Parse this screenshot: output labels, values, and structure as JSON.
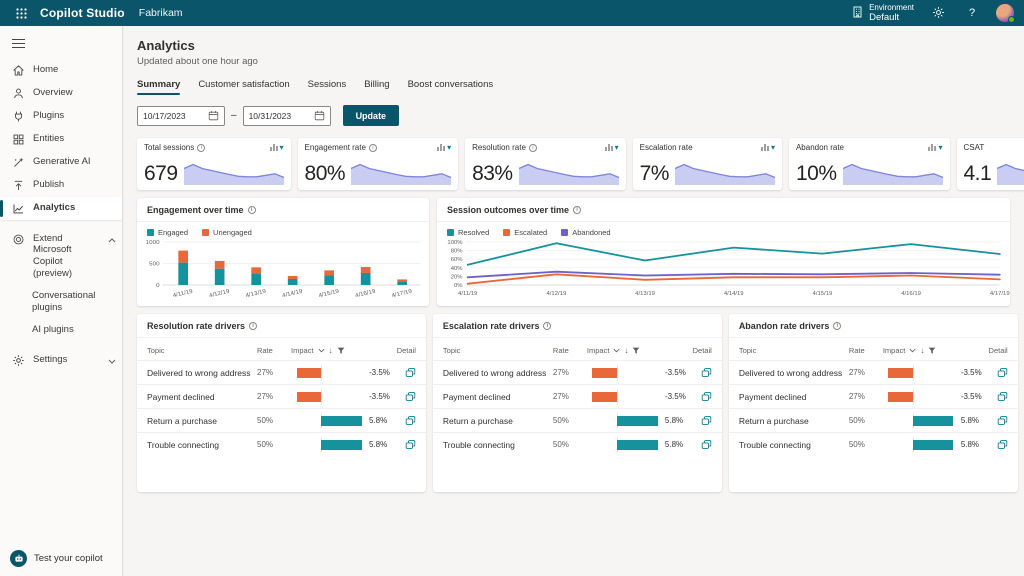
{
  "topbar": {
    "app_title": "Copilot Studio",
    "bot_name": "Fabrikam",
    "environment_label": "Environment",
    "environment_value": "Default",
    "help_label": "?"
  },
  "sidebar": {
    "items": [
      {
        "label": "Home"
      },
      {
        "label": "Overview"
      },
      {
        "label": "Plugins"
      },
      {
        "label": "Entities"
      },
      {
        "label": "Generative AI"
      },
      {
        "label": "Publish"
      },
      {
        "label": "Analytics"
      },
      {
        "label": "Extend Microsoft Copilot (preview)"
      },
      {
        "label": "Conversational plugins"
      },
      {
        "label": "AI plugins"
      },
      {
        "label": "Settings"
      }
    ],
    "test_button": "Test your copilot"
  },
  "page": {
    "title": "Analytics",
    "updated": "Updated about one hour ago",
    "tabs": [
      "Summary",
      "Customer satisfaction",
      "Sessions",
      "Billing",
      "Boost conversations"
    ],
    "active_tab": "Summary",
    "date_from": "10/17/2023",
    "date_to": "10/31/2023",
    "update_button": "Update"
  },
  "kpis": [
    {
      "label": "Total sessions",
      "value": "679",
      "info": true
    },
    {
      "label": "Engagement rate",
      "value": "80%",
      "info": true
    },
    {
      "label": "Resolution rate",
      "value": "83%",
      "info": true
    },
    {
      "label": "Escalation rate",
      "value": "7%",
      "info": false
    },
    {
      "label": "Abandon rate",
      "value": "10%",
      "info": false
    },
    {
      "label": "CSAT",
      "value": "4.1",
      "info": false
    }
  ],
  "chart_data": [
    {
      "type": "area",
      "title": "KPI trend sparkline (shared shape across KPI cards)",
      "values": [
        62,
        78,
        62,
        54,
        46,
        38,
        31,
        29,
        29,
        35,
        41,
        26
      ],
      "ylim": [
        0,
        100
      ],
      "stroke": "#7e86d8",
      "fill": "#c9cdf2"
    },
    {
      "type": "bar",
      "title": "Engagement over time",
      "stacked": true,
      "categories": [
        "4/11/19",
        "4/12/19",
        "4/13/19",
        "4/14/19",
        "4/15/19",
        "4/16/19",
        "4/17/19"
      ],
      "series": [
        {
          "name": "Engaged",
          "color": "#15929c",
          "values": [
            520,
            380,
            270,
            140,
            220,
            280,
            80
          ]
        },
        {
          "name": "Unengaged",
          "color": "#e8683a",
          "values": [
            280,
            180,
            140,
            70,
            120,
            140,
            50
          ]
        }
      ],
      "ylim": [
        0,
        1000
      ],
      "yticks": [
        0,
        500,
        1000
      ],
      "legend_position": "top",
      "grid": true
    },
    {
      "type": "line",
      "title": "Session outcomes over time",
      "categories": [
        "4/11/19",
        "4/12/19",
        "4/13/19",
        "4/14/19",
        "4/15/19",
        "4/16/19",
        "4/17/19"
      ],
      "series": [
        {
          "name": "Resolved",
          "color": "#15929c",
          "values": [
            47,
            97,
            57,
            87,
            73,
            95,
            72
          ]
        },
        {
          "name": "Escalated",
          "color": "#e8683a",
          "values": [
            3,
            25,
            12,
            18,
            18,
            22,
            13
          ]
        },
        {
          "name": "Abandoned",
          "color": "#7160c8",
          "values": [
            18,
            31,
            22,
            26,
            25,
            28,
            24
          ]
        }
      ],
      "ylim": [
        0,
        100
      ],
      "yticks": [
        "0%",
        "20%",
        "40%",
        "60%",
        "80%",
        "100%"
      ],
      "legend_position": "top",
      "grid": true
    }
  ],
  "driver_tables": {
    "titles": [
      "Resolution rate drivers",
      "Escalation rate drivers",
      "Abandon rate drivers"
    ],
    "columns": {
      "topic": "Topic",
      "rate": "Rate",
      "impact": "Impact",
      "detail": "Detail"
    },
    "rows": [
      {
        "topic": "Delivered to wrong address",
        "rate": "27%",
        "impact": -3.5,
        "impact_label": "-3.5%"
      },
      {
        "topic": "Payment declined",
        "rate": "27%",
        "impact": -3.5,
        "impact_label": "-3.5%"
      },
      {
        "topic": "Return a purchase",
        "rate": "50%",
        "impact": 5.8,
        "impact_label": "5.8%"
      },
      {
        "topic": "Trouble connecting",
        "rate": "50%",
        "impact": 5.8,
        "impact_label": "5.8%"
      }
    ]
  },
  "colors": {
    "brand_teal": "#0b556b",
    "chart_teal": "#15929c",
    "chart_orange": "#e8683a",
    "chart_purple": "#7160c8",
    "spark_stroke": "#7e86d8",
    "spark_fill": "#c9cdf2"
  }
}
